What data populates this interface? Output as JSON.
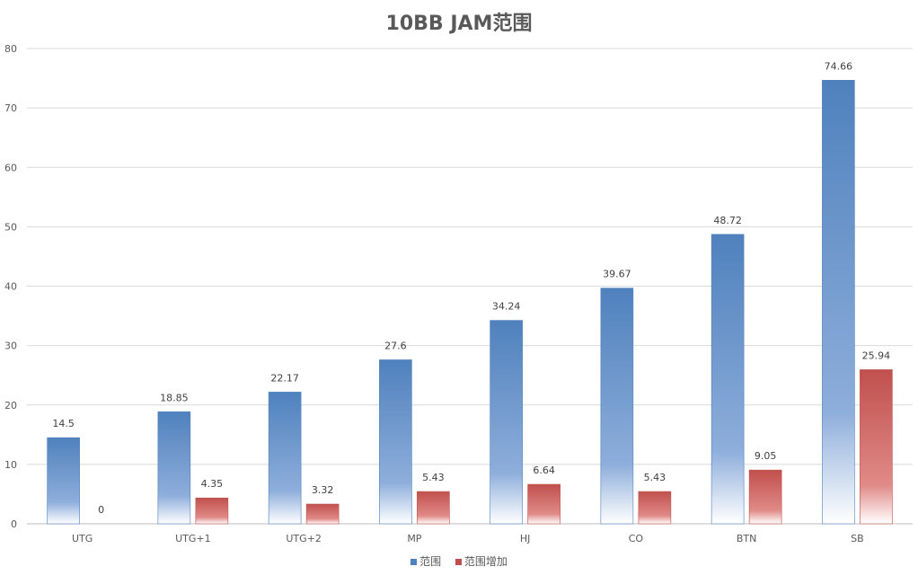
{
  "chart_data": {
    "type": "bar",
    "title": "10BB JAM范围",
    "categories": [
      "UTG",
      "UTG+1",
      "UTG+2",
      "MP",
      "HJ",
      "CO",
      "BTN",
      "SB"
    ],
    "series": [
      {
        "name": "范围",
        "values": [
          14.5,
          18.85,
          22.17,
          27.6,
          34.24,
          39.67,
          48.72,
          74.66
        ],
        "color": "#4f81bd"
      },
      {
        "name": "范围增加",
        "values": [
          0,
          4.35,
          3.32,
          5.43,
          6.64,
          5.43,
          9.05,
          25.94
        ],
        "color": "#c0504d"
      }
    ],
    "y_ticks": [
      "0",
      "10",
      "20",
      "30",
      "40",
      "50",
      "60",
      "70",
      "80"
    ],
    "ylim": [
      0,
      80
    ],
    "grid": true,
    "legend_position": "bottom"
  }
}
